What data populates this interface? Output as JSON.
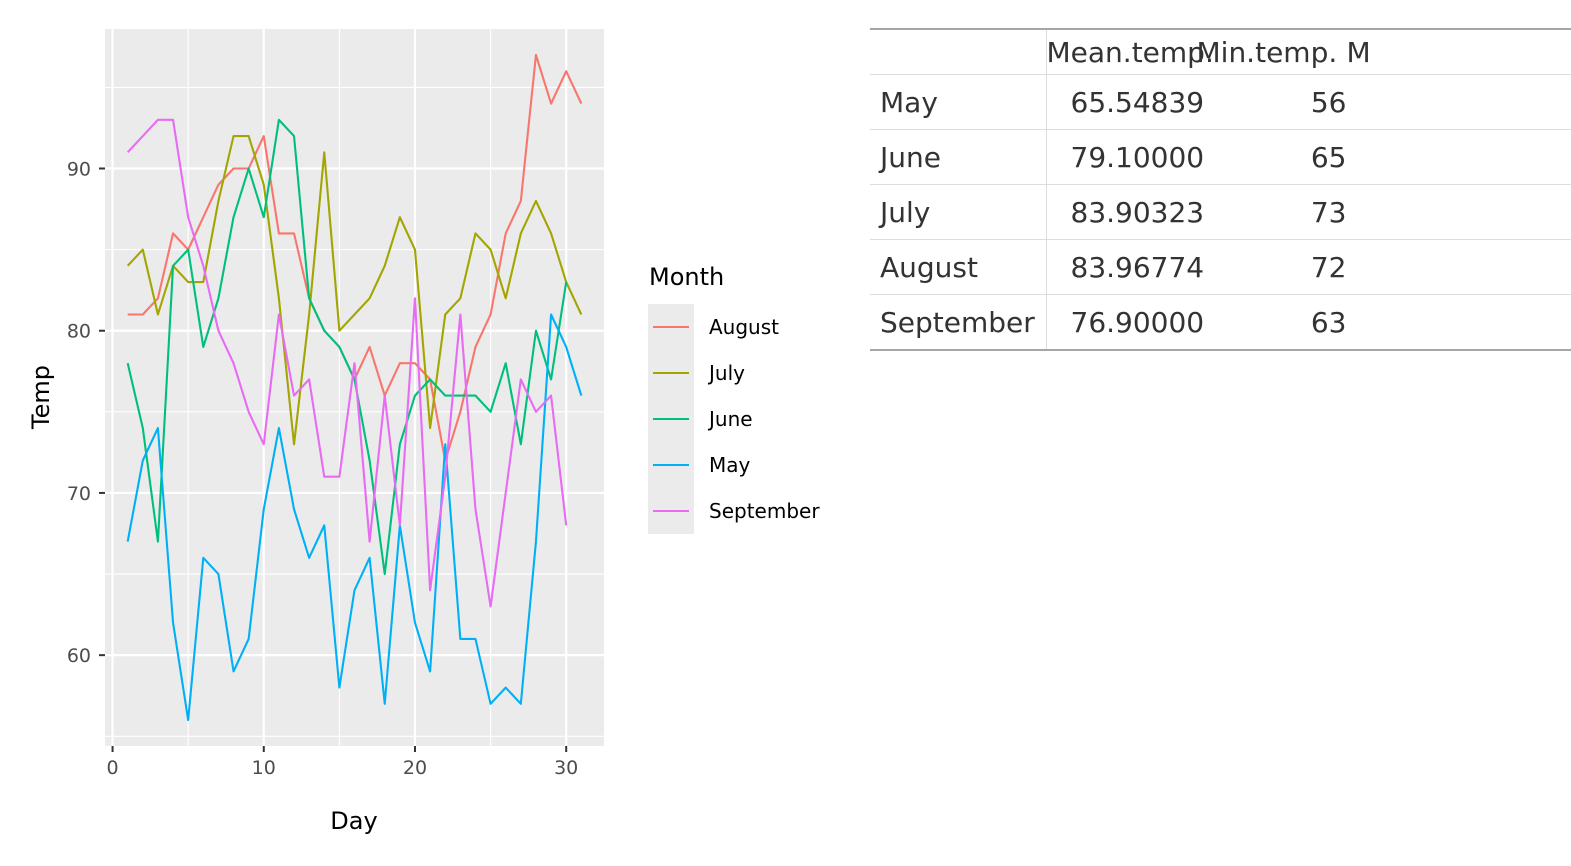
{
  "chart_data": {
    "type": "line",
    "title": "",
    "xlabel": "Day",
    "ylabel": "Temp",
    "xlim": [
      -0.5,
      32.5
    ],
    "ylim": [
      54.4,
      98.6
    ],
    "xticks": [
      0,
      10,
      20,
      30
    ],
    "yticks": [
      60,
      70,
      80,
      90
    ],
    "grid": true,
    "legend": {
      "title": "Month",
      "placement": "right",
      "entries": [
        "August",
        "July",
        "June",
        "May",
        "September"
      ]
    },
    "series": [
      {
        "name": "August",
        "color": "#F8766D",
        "x": [
          1,
          2,
          3,
          4,
          5,
          6,
          7,
          8,
          9,
          10,
          11,
          12,
          13,
          14,
          15,
          16,
          17,
          18,
          19,
          20,
          21,
          22,
          23,
          24,
          25,
          26,
          27,
          28,
          29,
          30,
          31
        ],
        "values": [
          81,
          81,
          82,
          86,
          85,
          87,
          89,
          90,
          90,
          92,
          86,
          86,
          82,
          80,
          79,
          77,
          79,
          76,
          78,
          78,
          77,
          72,
          75,
          79,
          81,
          86,
          88,
          97,
          94,
          96,
          94
        ]
      },
      {
        "name": "July",
        "color": "#A3A500",
        "x": [
          1,
          2,
          3,
          4,
          5,
          6,
          7,
          8,
          9,
          10,
          11,
          12,
          13,
          14,
          15,
          16,
          17,
          18,
          19,
          20,
          21,
          22,
          23,
          24,
          25,
          26,
          27,
          28,
          29,
          30,
          31
        ],
        "values": [
          84,
          85,
          81,
          84,
          83,
          83,
          88,
          92,
          92,
          89,
          82,
          73,
          81,
          91,
          80,
          81,
          82,
          84,
          87,
          85,
          74,
          81,
          82,
          86,
          85,
          82,
          86,
          88,
          86,
          83,
          81
        ]
      },
      {
        "name": "June",
        "color": "#00BF7D",
        "x": [
          1,
          2,
          3,
          4,
          5,
          6,
          7,
          8,
          9,
          10,
          11,
          12,
          13,
          14,
          15,
          16,
          17,
          18,
          19,
          20,
          21,
          22,
          23,
          24,
          25,
          26,
          27,
          28,
          29,
          30
        ],
        "values": [
          78,
          74,
          67,
          84,
          85,
          79,
          82,
          87,
          90,
          87,
          93,
          92,
          82,
          80,
          79,
          77,
          72,
          65,
          73,
          76,
          77,
          76,
          76,
          76,
          75,
          78,
          73,
          80,
          77,
          83
        ]
      },
      {
        "name": "May",
        "color": "#00B0F6",
        "x": [
          1,
          2,
          3,
          4,
          5,
          6,
          7,
          8,
          9,
          10,
          11,
          12,
          13,
          14,
          15,
          16,
          17,
          18,
          19,
          20,
          21,
          22,
          23,
          24,
          25,
          26,
          27,
          28,
          29,
          30,
          31
        ],
        "values": [
          67,
          72,
          74,
          62,
          56,
          66,
          65,
          59,
          61,
          69,
          74,
          69,
          66,
          68,
          58,
          64,
          66,
          57,
          68,
          62,
          59,
          73,
          61,
          61,
          57,
          58,
          57,
          67,
          81,
          79,
          76
        ]
      },
      {
        "name": "September",
        "color": "#E76BF3",
        "x": [
          1,
          2,
          3,
          4,
          5,
          6,
          7,
          8,
          9,
          10,
          11,
          12,
          13,
          14,
          15,
          16,
          17,
          18,
          19,
          20,
          21,
          22,
          23,
          24,
          25,
          26,
          27,
          28,
          29,
          30
        ],
        "values": [
          91,
          92,
          93,
          93,
          87,
          84,
          80,
          78,
          75,
          73,
          81,
          76,
          77,
          71,
          71,
          78,
          67,
          76,
          68,
          82,
          64,
          71,
          81,
          69,
          63,
          70,
          77,
          75,
          76,
          68
        ]
      }
    ]
  },
  "table": {
    "header": {
      "month": "",
      "mean": "Mean.temp.",
      "min": "Min.temp.",
      "max": "M"
    },
    "rows": [
      {
        "month": "May",
        "mean": "65.54839",
        "min": "56"
      },
      {
        "month": "June",
        "mean": "79.10000",
        "min": "65"
      },
      {
        "month": "July",
        "mean": "83.90323",
        "min": "73"
      },
      {
        "month": "August",
        "mean": "83.96774",
        "min": "72"
      },
      {
        "month": "September",
        "mean": "76.90000",
        "min": "63"
      }
    ]
  }
}
